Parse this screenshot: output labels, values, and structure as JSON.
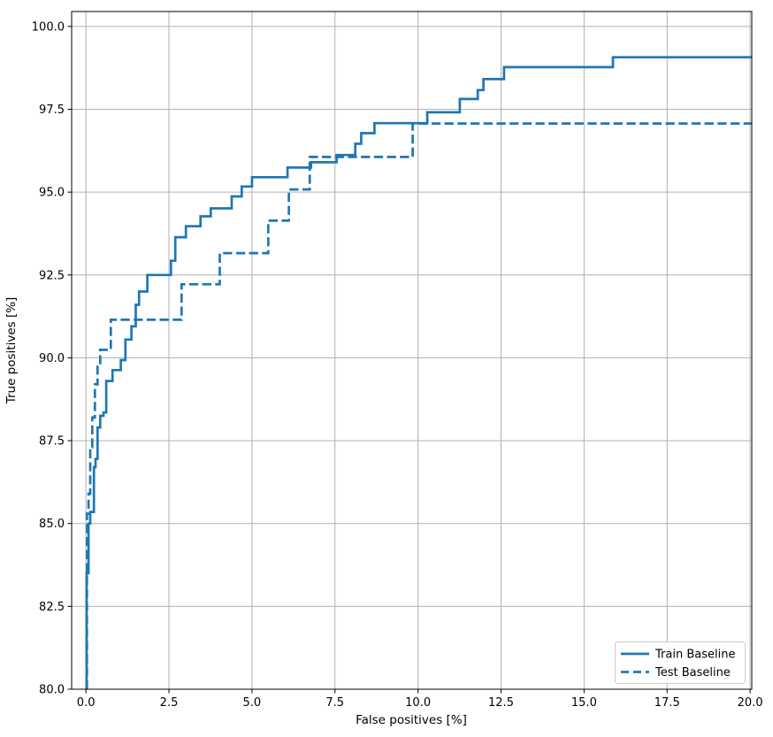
{
  "chart_data": {
    "type": "line",
    "subtype": "roc-step-curves",
    "title": "",
    "xlabel": "False positives [%]",
    "ylabel": "True positives [%]",
    "xlim": [
      -0.43,
      20.05
    ],
    "ylim": [
      80,
      100.45
    ],
    "x_ticks": [
      0,
      2.5,
      5,
      7.5,
      10,
      12.5,
      15,
      17.5,
      20
    ],
    "x_tick_labels": [
      "0.0",
      "2.5",
      "5.0",
      "7.5",
      "10.0",
      "12.5",
      "15.0",
      "17.5",
      "20.0"
    ],
    "y_ticks": [
      80,
      82.5,
      85,
      87.5,
      90,
      92.5,
      95,
      97.5,
      100
    ],
    "y_tick_labels": [
      "80.0",
      "82.5",
      "85.0",
      "87.5",
      "90.0",
      "92.5",
      "95.0",
      "97.5",
      "100.0"
    ],
    "grid": true,
    "legend": {
      "position": "lower right",
      "items": [
        "Train Baseline",
        "Test Baseline"
      ]
    },
    "colors": {
      "line": "#1f77b4",
      "grid": "#b0b0b0",
      "spine": "#000000",
      "text": "#000000",
      "legend_border": "#cccccc",
      "background": "#ffffff"
    },
    "series": [
      {
        "name": "Train Baseline",
        "style": "solid",
        "points": [
          [
            0.02,
            80.0
          ],
          [
            0.02,
            83.5
          ],
          [
            0.08,
            83.5
          ],
          [
            0.08,
            85.0
          ],
          [
            0.13,
            85.0
          ],
          [
            0.13,
            85.35
          ],
          [
            0.24,
            85.35
          ],
          [
            0.24,
            86.7
          ],
          [
            0.29,
            86.7
          ],
          [
            0.29,
            86.95
          ],
          [
            0.35,
            86.95
          ],
          [
            0.35,
            87.9
          ],
          [
            0.43,
            87.9
          ],
          [
            0.43,
            88.25
          ],
          [
            0.53,
            88.25
          ],
          [
            0.53,
            88.35
          ],
          [
            0.61,
            88.35
          ],
          [
            0.61,
            89.3
          ],
          [
            0.8,
            89.3
          ],
          [
            0.8,
            89.63
          ],
          [
            1.05,
            89.63
          ],
          [
            1.05,
            89.93
          ],
          [
            1.19,
            89.93
          ],
          [
            1.19,
            90.55
          ],
          [
            1.37,
            90.55
          ],
          [
            1.37,
            90.95
          ],
          [
            1.5,
            90.95
          ],
          [
            1.5,
            91.6
          ],
          [
            1.6,
            91.6
          ],
          [
            1.6,
            92.0
          ],
          [
            1.85,
            92.0
          ],
          [
            1.85,
            92.5
          ],
          [
            2.56,
            92.5
          ],
          [
            2.56,
            92.93
          ],
          [
            2.69,
            92.93
          ],
          [
            2.69,
            93.64
          ],
          [
            3.01,
            93.64
          ],
          [
            3.01,
            93.97
          ],
          [
            3.45,
            93.97
          ],
          [
            3.45,
            94.27
          ],
          [
            3.76,
            94.27
          ],
          [
            3.76,
            94.51
          ],
          [
            4.39,
            94.51
          ],
          [
            4.39,
            94.87
          ],
          [
            4.69,
            94.87
          ],
          [
            4.69,
            95.17
          ],
          [
            5.0,
            95.17
          ],
          [
            5.0,
            95.45
          ],
          [
            6.07,
            95.45
          ],
          [
            6.07,
            95.74
          ],
          [
            6.78,
            95.74
          ],
          [
            6.78,
            95.9
          ],
          [
            7.55,
            95.9
          ],
          [
            7.55,
            96.12
          ],
          [
            8.11,
            96.12
          ],
          [
            8.11,
            96.46
          ],
          [
            8.29,
            96.46
          ],
          [
            8.29,
            96.78
          ],
          [
            8.69,
            96.78
          ],
          [
            8.69,
            97.08
          ],
          [
            10.28,
            97.08
          ],
          [
            10.28,
            97.41
          ],
          [
            11.26,
            97.41
          ],
          [
            11.26,
            97.81
          ],
          [
            11.8,
            97.81
          ],
          [
            11.8,
            98.08
          ],
          [
            11.97,
            98.08
          ],
          [
            11.97,
            98.41
          ],
          [
            12.59,
            98.41
          ],
          [
            12.59,
            98.77
          ],
          [
            15.87,
            98.77
          ],
          [
            15.87,
            99.07
          ],
          [
            20.05,
            99.07
          ]
        ]
      },
      {
        "name": "Test Baseline",
        "style": "dashed",
        "points": [
          [
            0.03,
            80.0
          ],
          [
            0.03,
            85.3
          ],
          [
            0.08,
            85.3
          ],
          [
            0.08,
            85.9
          ],
          [
            0.13,
            85.9
          ],
          [
            0.13,
            87.3
          ],
          [
            0.19,
            87.3
          ],
          [
            0.19,
            88.2
          ],
          [
            0.27,
            88.2
          ],
          [
            0.27,
            89.2
          ],
          [
            0.35,
            89.2
          ],
          [
            0.35,
            89.8
          ],
          [
            0.43,
            89.8
          ],
          [
            0.43,
            90.24
          ],
          [
            0.75,
            90.24
          ],
          [
            0.75,
            91.15
          ],
          [
            2.88,
            91.15
          ],
          [
            2.88,
            92.22
          ],
          [
            4.03,
            92.22
          ],
          [
            4.03,
            93.16
          ],
          [
            5.49,
            93.16
          ],
          [
            5.49,
            94.14
          ],
          [
            6.11,
            94.14
          ],
          [
            6.11,
            95.08
          ],
          [
            6.74,
            95.08
          ],
          [
            6.74,
            96.06
          ],
          [
            9.84,
            96.06
          ],
          [
            9.84,
            97.07
          ],
          [
            20.05,
            97.07
          ]
        ]
      }
    ]
  }
}
